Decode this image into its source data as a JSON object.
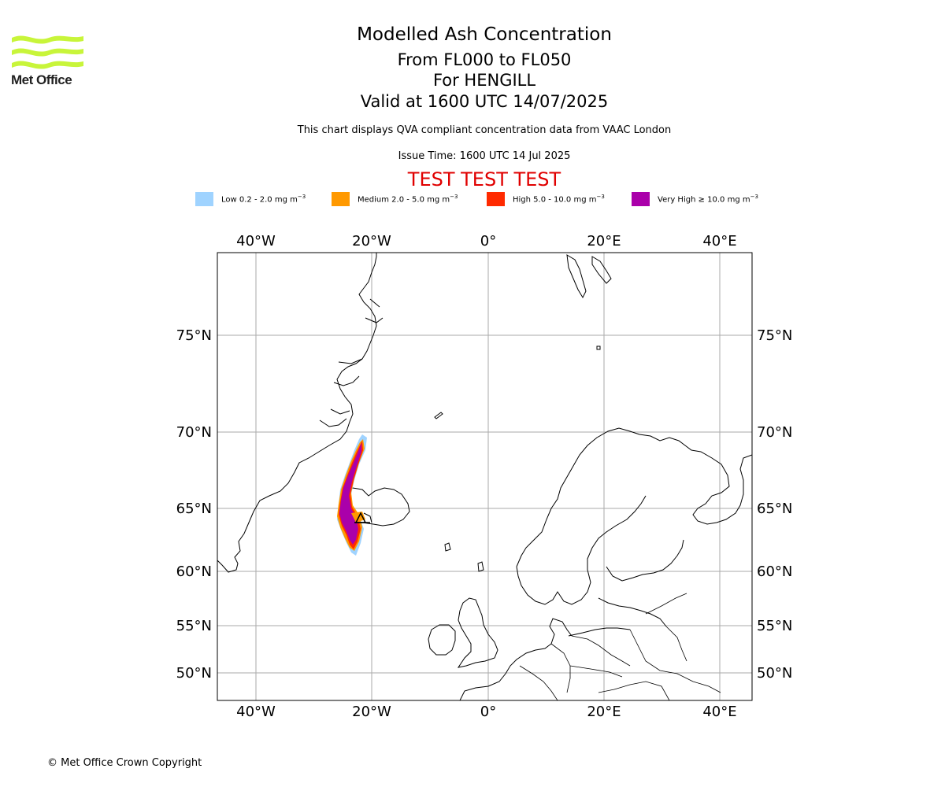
{
  "logo": {
    "text": "Met Office",
    "color": "#c8f53a"
  },
  "header": {
    "title": "Modelled Ash Concentration",
    "levels": "From FL000 to FL050",
    "volcano": "For HENGILL",
    "valid": "Valid at 1600 UTC 14/07/2025",
    "description": "This chart displays QVA compliant concentration data from VAAC London",
    "issue_time": "Issue Time: 1600 UTC 14 Jul 2025",
    "test_banner": "TEST TEST TEST",
    "test_color": "#e00000"
  },
  "legend": [
    {
      "label": "Low 0.2 - 2.0 mg m",
      "exp": "−3",
      "color": "#9fd3ff"
    },
    {
      "label": "Medium 2.0 - 5.0 mg m",
      "exp": "−3",
      "color": "#ff9900"
    },
    {
      "label": "High 5.0 - 10.0 mg m",
      "exp": "−3",
      "color": "#ff2a00"
    },
    {
      "label": "Very High  ≥  10.0 mg m",
      "exp": "−3",
      "color": "#aa00aa"
    }
  ],
  "map": {
    "lon_ticks": [
      "40°W",
      "20°W",
      "0°",
      "20°E",
      "40°E"
    ],
    "lat_ticks": [
      "75°N",
      "70°N",
      "65°N",
      "60°N",
      "55°N",
      "50°N"
    ],
    "gridline_color": "#aaaaaa"
  },
  "footer": {
    "copyright": "© Met Office Crown Copyright"
  }
}
